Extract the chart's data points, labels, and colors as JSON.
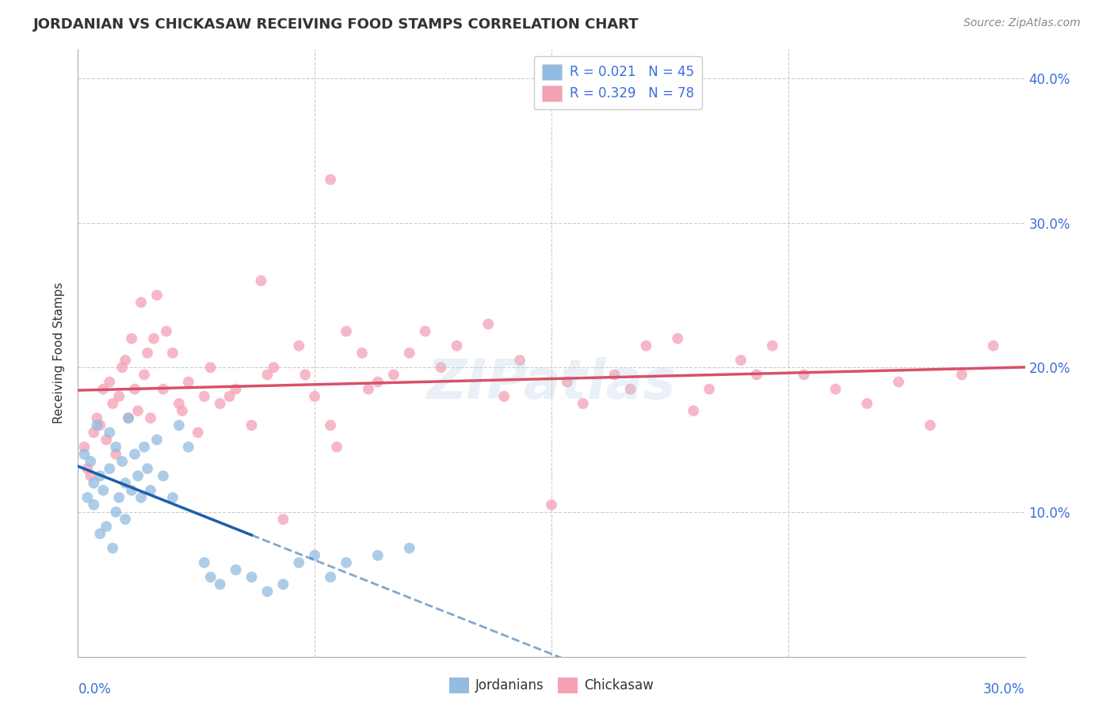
{
  "title": "JORDANIAN VS CHICKASAW RECEIVING FOOD STAMPS CORRELATION CHART",
  "source_text": "Source: ZipAtlas.com",
  "ylabel": "Receiving Food Stamps",
  "legend_blue_r": "R = 0.021",
  "legend_blue_n": "N = 45",
  "legend_pink_r": "R = 0.329",
  "legend_pink_n": "N = 78",
  "legend_jordanians": "Jordanians",
  "legend_chickasaw": "Chickasaw",
  "xlim": [
    0.0,
    30.0
  ],
  "ylim": [
    0.0,
    42.0
  ],
  "blue_color": "#92bce0",
  "pink_color": "#f4a0b5",
  "blue_line_color": "#1a5fa8",
  "pink_line_color": "#d9506a",
  "axis_color": "#3a6fd8",
  "background_color": "#ffffff",
  "grid_color": "#cccccc",
  "title_color": "#333333",
  "source_color": "#888888",
  "jordanians_x": [
    0.2,
    0.3,
    0.4,
    0.5,
    0.5,
    0.6,
    0.7,
    0.7,
    0.8,
    0.9,
    1.0,
    1.0,
    1.1,
    1.2,
    1.2,
    1.3,
    1.4,
    1.5,
    1.5,
    1.6,
    1.7,
    1.8,
    1.9,
    2.0,
    2.1,
    2.2,
    2.3,
    2.5,
    2.7,
    3.0,
    3.2,
    3.5,
    4.0,
    4.2,
    4.5,
    5.0,
    5.5,
    6.0,
    6.5,
    7.0,
    7.5,
    8.0,
    8.5,
    9.5,
    10.5
  ],
  "jordanians_y": [
    14.0,
    11.0,
    13.5,
    10.5,
    12.0,
    16.0,
    8.5,
    12.5,
    11.5,
    9.0,
    13.0,
    15.5,
    7.5,
    10.0,
    14.5,
    11.0,
    13.5,
    9.5,
    12.0,
    16.5,
    11.5,
    14.0,
    12.5,
    11.0,
    14.5,
    13.0,
    11.5,
    15.0,
    12.5,
    11.0,
    16.0,
    14.5,
    6.5,
    5.5,
    5.0,
    6.0,
    5.5,
    4.5,
    5.0,
    6.5,
    7.0,
    5.5,
    6.5,
    7.0,
    7.5
  ],
  "chickasaw_x": [
    0.2,
    0.3,
    0.5,
    0.7,
    0.8,
    0.9,
    1.0,
    1.1,
    1.2,
    1.3,
    1.5,
    1.6,
    1.7,
    1.8,
    1.9,
    2.0,
    2.1,
    2.2,
    2.3,
    2.5,
    2.7,
    2.8,
    3.0,
    3.2,
    3.5,
    3.8,
    4.0,
    4.2,
    4.5,
    5.0,
    5.5,
    5.8,
    6.0,
    6.5,
    7.0,
    7.5,
    8.0,
    8.5,
    9.0,
    9.5,
    10.0,
    11.0,
    12.0,
    13.0,
    14.0,
    15.0,
    16.0,
    17.0,
    18.0,
    19.0,
    20.0,
    21.0,
    22.0,
    23.0,
    24.0,
    25.0,
    26.0,
    27.0,
    28.0,
    29.0,
    0.4,
    0.6,
    1.4,
    2.4,
    3.3,
    4.8,
    6.2,
    7.2,
    8.2,
    9.2,
    10.5,
    11.5,
    13.5,
    15.5,
    17.5,
    19.5,
    21.5,
    8.0
  ],
  "chickasaw_y": [
    14.5,
    13.0,
    15.5,
    16.0,
    18.5,
    15.0,
    19.0,
    17.5,
    14.0,
    18.0,
    20.5,
    16.5,
    22.0,
    18.5,
    17.0,
    24.5,
    19.5,
    21.0,
    16.5,
    25.0,
    18.5,
    22.5,
    21.0,
    17.5,
    19.0,
    15.5,
    18.0,
    20.0,
    17.5,
    18.5,
    16.0,
    26.0,
    19.5,
    9.5,
    21.5,
    18.0,
    16.0,
    22.5,
    21.0,
    19.0,
    19.5,
    22.5,
    21.5,
    23.0,
    20.5,
    10.5,
    17.5,
    19.5,
    21.5,
    22.0,
    18.5,
    20.5,
    21.5,
    19.5,
    18.5,
    17.5,
    19.0,
    16.0,
    19.5,
    21.5,
    12.5,
    16.5,
    20.0,
    22.0,
    17.0,
    18.0,
    20.0,
    19.5,
    14.5,
    18.5,
    21.0,
    20.0,
    18.0,
    19.0,
    18.5,
    17.0,
    19.5,
    33.0
  ]
}
